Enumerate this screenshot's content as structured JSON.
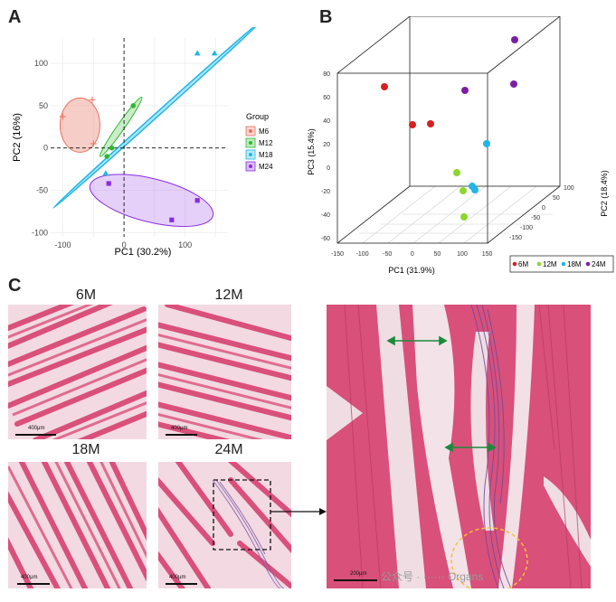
{
  "panels": {
    "a": "A",
    "b": "B",
    "c": "C"
  },
  "colors": {
    "m6": "#E8735F",
    "m12": "#2EB82E",
    "m18": "#1FB6E6",
    "m24": "#8A2BE2",
    "b6": "#D42020",
    "b12": "#8CD62E",
    "b18": "#22B5E8",
    "b24": "#7B1FA2",
    "tissue": "#D9507A",
    "background": "#F3E4EA"
  },
  "chart_data": [
    {
      "type": "scatter",
      "xlabel": "PC1 (30.2%)",
      "ylabel": "PC2 (16%)",
      "xlim": [
        -120,
        170
      ],
      "ylim": [
        -105,
        130
      ],
      "x_ticks": [
        "-100",
        "0",
        "100"
      ],
      "y_ticks": [
        "100",
        "50",
        "0",
        "-50",
        "-100"
      ],
      "grid": true,
      "legend_title": "Group",
      "legend_placement": "right",
      "series": [
        {
          "name": "M6",
          "points": [
            [
              -100,
              37
            ],
            [
              -52,
              57
            ],
            [
              -50,
              5
            ]
          ]
        },
        {
          "name": "M12",
          "points": [
            [
              -28,
              -10
            ],
            [
              -20,
              0
            ],
            [
              15,
              50
            ]
          ]
        },
        {
          "name": "M18",
          "points": [
            [
              -30,
              -30
            ],
            [
              120,
              112
            ],
            [
              148,
              112
            ]
          ]
        },
        {
          "name": "M24",
          "points": [
            [
              -25,
              -42
            ],
            [
              78,
              -85
            ],
            [
              120,
              -62
            ]
          ]
        }
      ]
    },
    {
      "type": "scatter",
      "xlabel": "PC1 (31.9%)",
      "ylabel": "PC3 (15.4%)",
      "zlabel": "PC2 (18.4%)",
      "x_ticks": [
        "-150",
        "-100",
        "-50",
        "0",
        "50",
        "100",
        "150"
      ],
      "y_ticks": [
        "80",
        "60",
        "40",
        "20",
        "0",
        "-20",
        "-40",
        "-60"
      ],
      "z_ticks": [
        "100",
        "50",
        "0",
        "-50",
        "-100",
        "-150"
      ],
      "legend": [
        "6M",
        "12M",
        "18M",
        "24M"
      ],
      "legend_placement": "bottom-right"
    }
  ],
  "histology": {
    "labels": [
      "6M",
      "12M",
      "18M",
      "24M"
    ],
    "scale_small": "400μm",
    "scale_large": "200μm",
    "watermark": "公众号 · ······ Organs"
  }
}
